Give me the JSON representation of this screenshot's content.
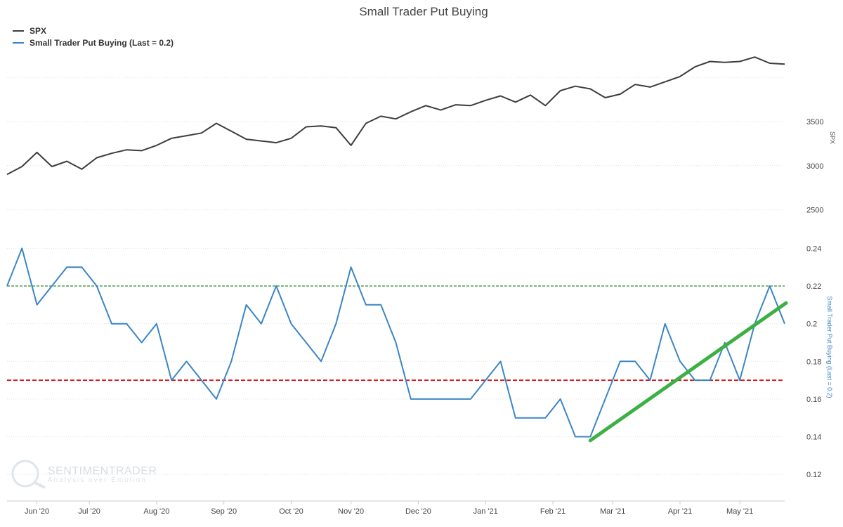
{
  "chart_data": {
    "type": "line",
    "title": "Small Trader Put Buying",
    "legend_position": "top-left",
    "watermark": {
      "name": "SENTIMENTRADER",
      "tagline": "Analysis over Emotion"
    },
    "x_tick_labels": [
      "Jun '20",
      "Jul '20",
      "Aug '20",
      "Sep '20",
      "Oct '20",
      "Nov '20",
      "Dec '20",
      "Jan '21",
      "Feb '21",
      "Mar '21",
      "Apr '21",
      "May '21"
    ],
    "panels": {
      "top": {
        "ylabel": "SPX",
        "ylim": [
          2250,
          4200
        ],
        "yticks": [
          2500,
          3000,
          3500
        ],
        "grid": true
      },
      "bottom": {
        "ylabel": "Small Trader Put Buying (Last = 0.2)",
        "ylim": [
          0.107,
          0.245
        ],
        "yticks": [
          0.12,
          0.14,
          0.16,
          0.18,
          0.2,
          0.22,
          0.24
        ],
        "grid": true
      }
    },
    "series": [
      {
        "name": "SPX",
        "panel": "top",
        "color": "#3d3d3d",
        "values": [
          2900,
          2990,
          3150,
          2990,
          3050,
          2960,
          3090,
          3140,
          3180,
          3170,
          3230,
          3310,
          3340,
          3370,
          3480,
          3390,
          3300,
          3280,
          3260,
          3310,
          3440,
          3450,
          3430,
          3230,
          3480,
          3560,
          3530,
          3610,
          3680,
          3630,
          3690,
          3680,
          3740,
          3790,
          3720,
          3800,
          3680,
          3850,
          3900,
          3870,
          3770,
          3810,
          3920,
          3890,
          3950,
          4010,
          4120,
          4180,
          4170,
          4180,
          4230,
          4160,
          4150
        ]
      },
      {
        "name": "Small Trader Put Buying (Last = 0.2)",
        "panel": "bottom",
        "color": "#3b86c6",
        "values": [
          0.22,
          0.24,
          0.21,
          0.22,
          0.23,
          0.23,
          0.22,
          0.2,
          0.2,
          0.19,
          0.2,
          0.17,
          0.18,
          0.17,
          0.16,
          0.18,
          0.21,
          0.2,
          0.22,
          0.2,
          0.19,
          0.18,
          0.2,
          0.23,
          0.21,
          0.21,
          0.19,
          0.16,
          0.16,
          0.16,
          0.16,
          0.16,
          0.17,
          0.18,
          0.15,
          0.15,
          0.15,
          0.16,
          0.14,
          0.14,
          0.16,
          0.18,
          0.18,
          0.17,
          0.2,
          0.18,
          0.17,
          0.17,
          0.19,
          0.17,
          0.2,
          0.22,
          0.2
        ]
      }
    ],
    "reference_lines": [
      {
        "panel": "bottom",
        "value": 0.22,
        "color": "#2e8b2e",
        "style": "dashed"
      },
      {
        "panel": "bottom",
        "value": 0.17,
        "color": "#d02020",
        "style": "dashed"
      }
    ],
    "trend_line": {
      "panel": "bottom",
      "from_index": 39,
      "from_value": 0.138,
      "to_index": 52.7,
      "to_value": 0.211,
      "color": "#3cb043"
    }
  }
}
